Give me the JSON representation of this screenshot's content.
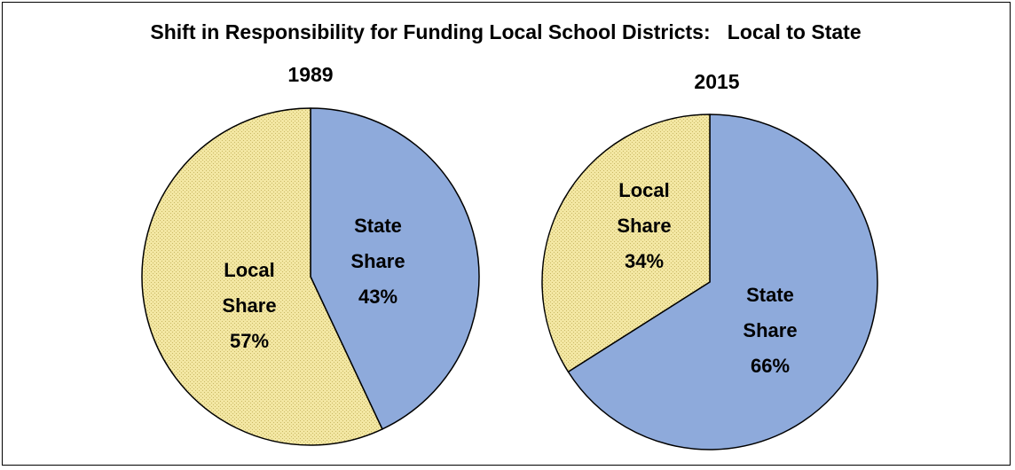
{
  "title": "Shift in Responsibility for Funding Local School Districts:   Local to State",
  "colors": {
    "state": "#8eaadb",
    "local": "#f3e7a3",
    "local_dots": "#c9b865",
    "outline": "#000000"
  },
  "chart_data": [
    {
      "type": "pie",
      "subtitle": "1989",
      "slices": [
        {
          "name": "State Share",
          "value": 43,
          "value_label": "43%",
          "label_lines": [
            "State",
            "Share",
            "43%"
          ]
        },
        {
          "name": "Local Share",
          "value": 57,
          "value_label": "57%",
          "label_lines": [
            "Local",
            "Share",
            "57%"
          ]
        }
      ]
    },
    {
      "type": "pie",
      "subtitle": "2015",
      "slices": [
        {
          "name": "State Share",
          "value": 66,
          "value_label": "66%",
          "label_lines": [
            "State",
            "Share",
            "66%"
          ]
        },
        {
          "name": "Local Share",
          "value": 34,
          "value_label": "34%",
          "label_lines": [
            "Local",
            "Share",
            "34%"
          ]
        }
      ]
    }
  ]
}
